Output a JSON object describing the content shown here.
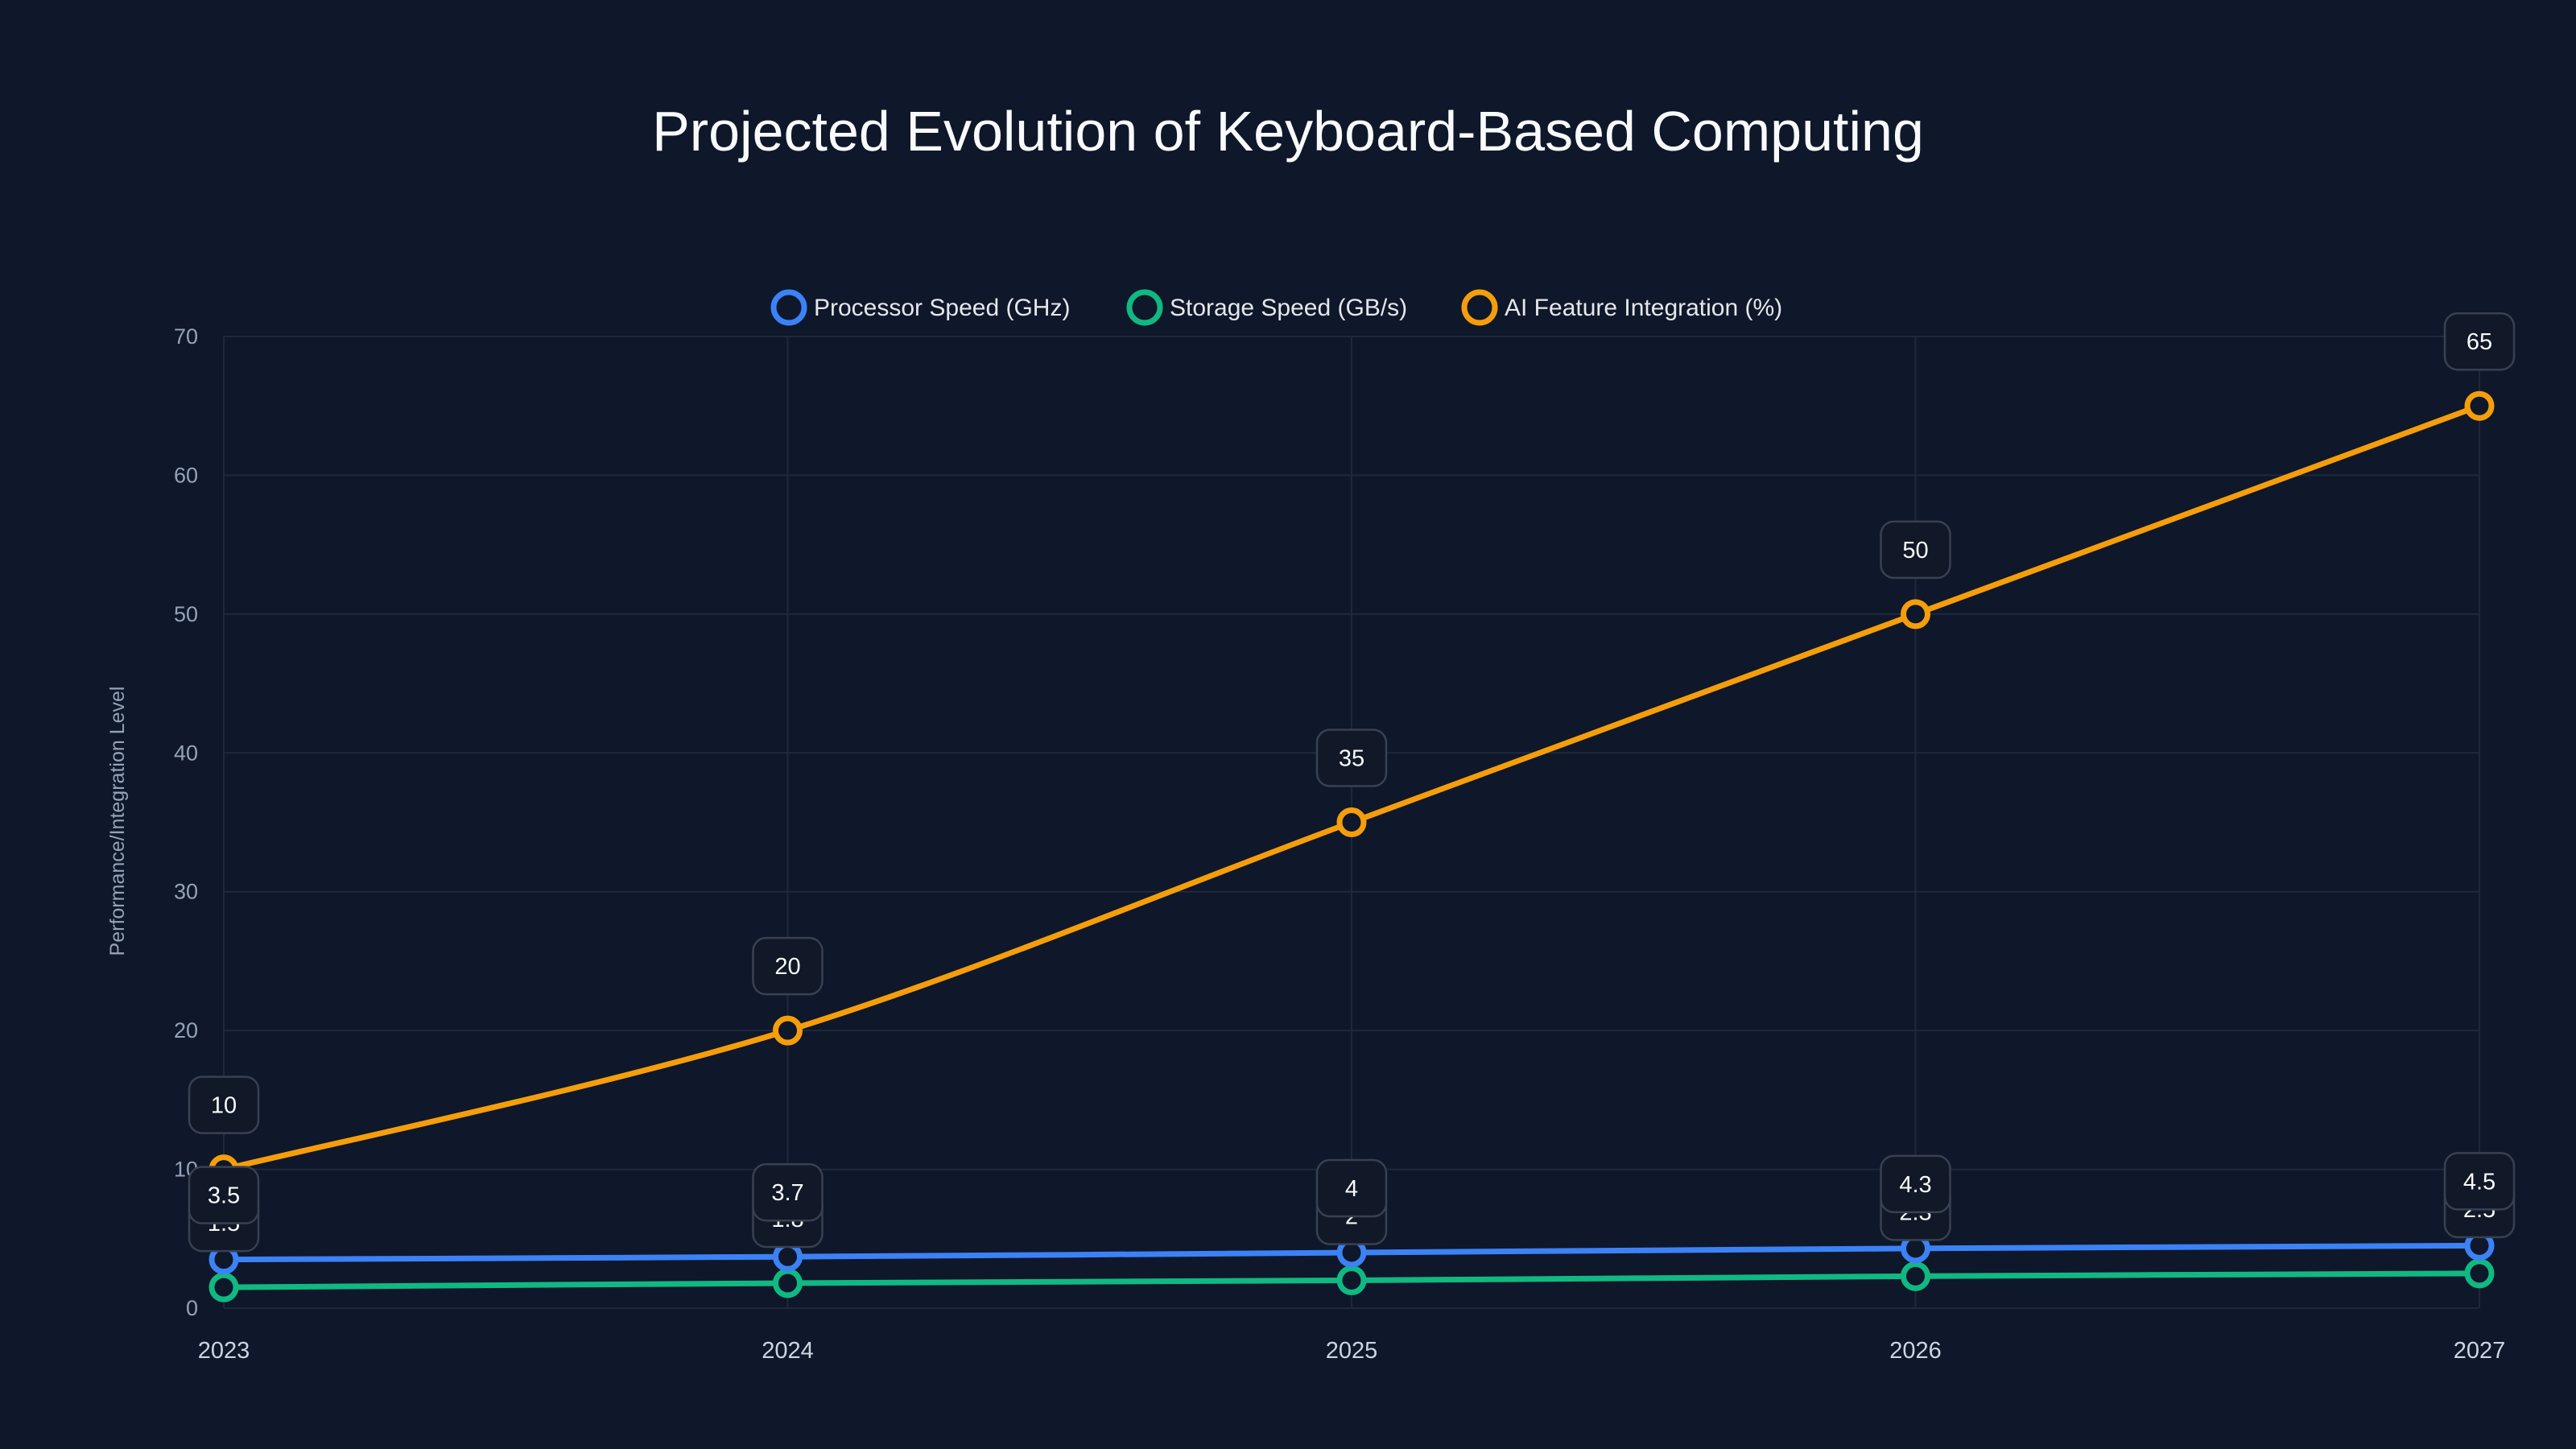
{
  "chart_data": {
    "type": "line",
    "title": "Projected Evolution of Keyboard-Based Computing",
    "xlabel": "",
    "ylabel": "Performance/Integration Level",
    "categories": [
      "2023",
      "2024",
      "2025",
      "2026",
      "2027"
    ],
    "ylim": [
      0,
      70
    ],
    "yticks": [
      0,
      10,
      20,
      30,
      40,
      50,
      60,
      70
    ],
    "grid": true,
    "legend_position": "top-center",
    "series": [
      {
        "name": "Processor Speed (GHz)",
        "color": "#3b82f6",
        "values": [
          3.5,
          3.7,
          4,
          4.3,
          4.5
        ]
      },
      {
        "name": "Storage Speed (GB/s)",
        "color": "#10b981",
        "values": [
          1.5,
          1.8,
          2,
          2.3,
          2.5
        ]
      },
      {
        "name": "AI Feature Integration (%)",
        "color": "#f59e0b",
        "values": [
          10,
          20,
          35,
          50,
          65
        ]
      }
    ],
    "background": "#0f172a"
  }
}
